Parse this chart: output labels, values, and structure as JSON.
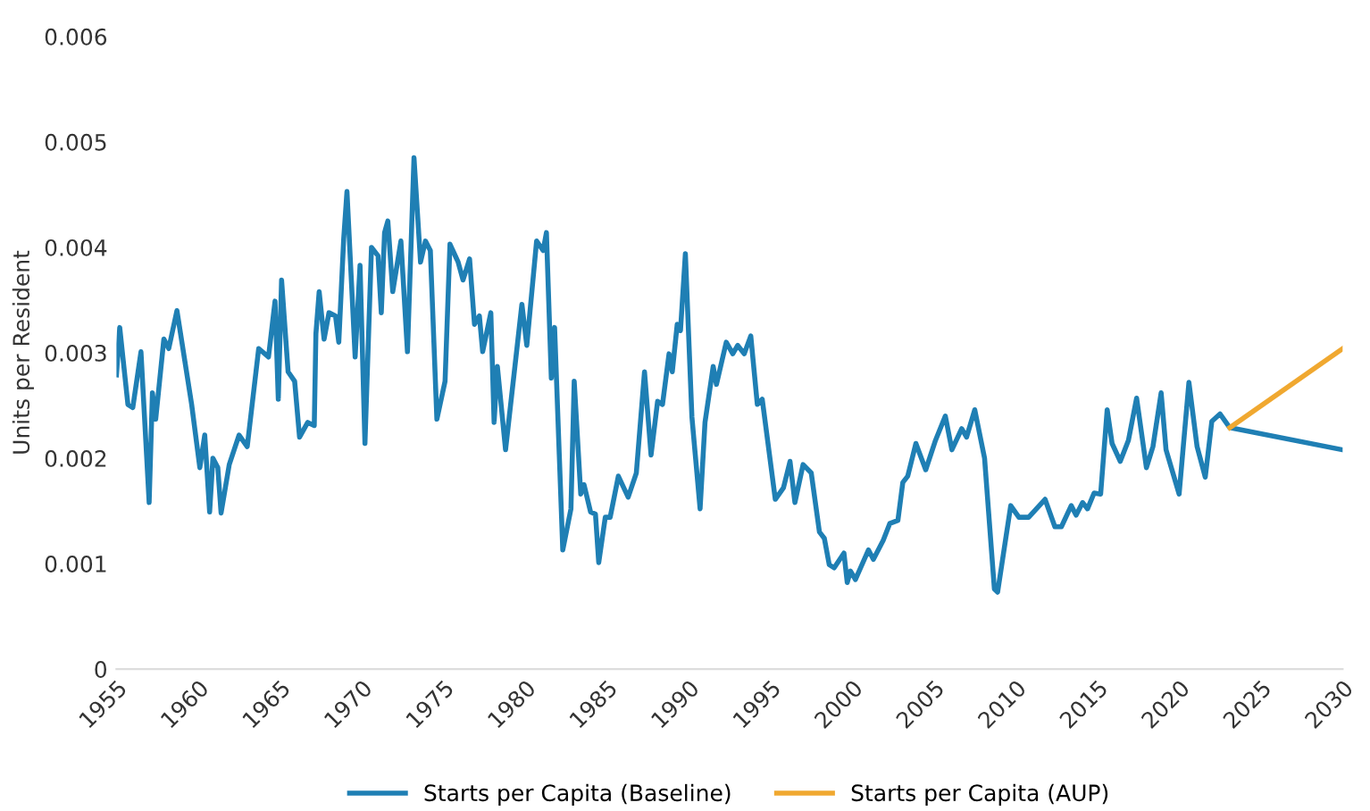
{
  "chart_data": {
    "type": "line",
    "ylabel": "Units per Resident",
    "xlim": [
      1955,
      2030
    ],
    "xticks": [
      1955,
      1960,
      1965,
      1970,
      1975,
      1980,
      1985,
      1990,
      1995,
      2000,
      2005,
      2010,
      2015,
      2020,
      2025,
      2030
    ],
    "ylim": [
      0,
      0.006
    ],
    "yticks": [
      0,
      0.001,
      0.002,
      0.003,
      0.004,
      0.005,
      0.006
    ],
    "grid": false,
    "legend": "bottom",
    "marker": "none",
    "line_style": "solid",
    "series": [
      {
        "name": "Starts per Capita (Baseline)",
        "color": "#1f7fb4",
        "x": [
          1955.0,
          1955.2,
          1955.7,
          1956.0,
          1956.5,
          1957.0,
          1957.2,
          1957.4,
          1957.9,
          1958.2,
          1958.7,
          1959.6,
          1960.1,
          1960.4,
          1960.7,
          1960.9,
          1961.2,
          1961.4,
          1961.9,
          1962.5,
          1963.0,
          1963.7,
          1964.3,
          1964.7,
          1964.9,
          1965.1,
          1965.5,
          1965.9,
          1966.2,
          1966.7,
          1967.1,
          1967.2,
          1967.4,
          1967.7,
          1968.0,
          1968.4,
          1968.6,
          1968.9,
          1969.1,
          1969.6,
          1969.9,
          1970.2,
          1970.6,
          1971.0,
          1971.2,
          1971.4,
          1971.6,
          1971.9,
          1972.4,
          1972.8,
          1973.2,
          1973.6,
          1973.9,
          1974.2,
          1974.6,
          1975.1,
          1975.4,
          1975.9,
          1976.2,
          1976.6,
          1976.9,
          1977.2,
          1977.4,
          1977.9,
          1978.1,
          1978.3,
          1978.8,
          1979.8,
          1980.1,
          1980.7,
          1981.1,
          1981.3,
          1981.6,
          1981.8,
          1982.3,
          1982.8,
          1983.0,
          1983.4,
          1983.6,
          1984.0,
          1984.3,
          1984.5,
          1984.9,
          1985.2,
          1985.7,
          1986.3,
          1986.8,
          1987.3,
          1987.7,
          1988.1,
          1988.4,
          1988.8,
          1989.0,
          1989.3,
          1989.5,
          1989.8,
          1990.2,
          1990.7,
          1991.0,
          1991.5,
          1991.7,
          1992.3,
          1992.7,
          1993.0,
          1993.4,
          1993.8,
          1994.2,
          1994.5,
          1995.3,
          1995.8,
          1996.2,
          1996.5,
          1997.0,
          1997.5,
          1998.0,
          1998.3,
          1998.6,
          1998.9,
          1999.5,
          1999.7,
          1999.9,
          2000.2,
          2001.0,
          2001.3,
          2001.9,
          2002.3,
          2002.8,
          2003.1,
          2003.4,
          2003.9,
          2004.5,
          2005.1,
          2005.7,
          2006.1,
          2006.7,
          2007.0,
          2007.5,
          2008.1,
          2008.7,
          2008.9,
          2009.7,
          2010.2,
          2010.8,
          2011.8,
          2012.4,
          2012.8,
          2013.4,
          2013.7,
          2014.1,
          2014.4,
          2014.8,
          2015.2,
          2015.6,
          2015.9,
          2016.4,
          2016.9,
          2017.4,
          2018.0,
          2018.4,
          2018.9,
          2019.2,
          2020.0,
          2020.6,
          2021.1,
          2021.6,
          2022.0,
          2022.5,
          2023.1,
          2030.0
        ],
        "values": [
          0.00279,
          0.00324,
          0.00251,
          0.00248,
          0.00301,
          0.00158,
          0.00262,
          0.00237,
          0.00313,
          0.00304,
          0.0034,
          0.00251,
          0.00191,
          0.00222,
          0.00149,
          0.002,
          0.00191,
          0.00148,
          0.00194,
          0.00222,
          0.00211,
          0.00304,
          0.00296,
          0.00349,
          0.00256,
          0.00369,
          0.00282,
          0.00273,
          0.0022,
          0.00234,
          0.00231,
          0.00318,
          0.00358,
          0.00313,
          0.00338,
          0.00335,
          0.0031,
          0.00408,
          0.00453,
          0.00296,
          0.00383,
          0.00214,
          0.004,
          0.00392,
          0.00338,
          0.00414,
          0.00425,
          0.00358,
          0.00406,
          0.00301,
          0.00485,
          0.00386,
          0.00406,
          0.00397,
          0.00237,
          0.00273,
          0.00403,
          0.00386,
          0.00369,
          0.00389,
          0.00327,
          0.00335,
          0.00301,
          0.00338,
          0.00234,
          0.00287,
          0.00208,
          0.00346,
          0.00307,
          0.00406,
          0.00397,
          0.00414,
          0.00276,
          0.00324,
          0.00113,
          0.00152,
          0.00273,
          0.00166,
          0.00175,
          0.00149,
          0.00147,
          0.00101,
          0.00144,
          0.00144,
          0.00183,
          0.00163,
          0.00186,
          0.00282,
          0.00203,
          0.00254,
          0.00251,
          0.00299,
          0.00282,
          0.00327,
          0.00321,
          0.00394,
          0.00239,
          0.00152,
          0.00234,
          0.00287,
          0.0027,
          0.0031,
          0.00299,
          0.00307,
          0.00299,
          0.00316,
          0.00251,
          0.00256,
          0.00161,
          0.00172,
          0.00197,
          0.00158,
          0.00194,
          0.00186,
          0.0013,
          0.00124,
          0.00099,
          0.00096,
          0.0011,
          0.00082,
          0.00093,
          0.00085,
          0.00113,
          0.00104,
          0.00122,
          0.00138,
          0.00141,
          0.00177,
          0.00183,
          0.00214,
          0.00189,
          0.00217,
          0.0024,
          0.00208,
          0.00228,
          0.0022,
          0.00246,
          0.002,
          0.00076,
          0.00073,
          0.00155,
          0.00144,
          0.00144,
          0.00161,
          0.00135,
          0.00135,
          0.00155,
          0.00146,
          0.00158,
          0.00152,
          0.00167,
          0.00166,
          0.00246,
          0.00214,
          0.00197,
          0.00217,
          0.00257,
          0.00191,
          0.00211,
          0.00262,
          0.00208,
          0.00166,
          0.00272,
          0.00211,
          0.00182,
          0.00235,
          0.00242,
          0.00229,
          0.00208
        ]
      },
      {
        "name": "Starts per Capita (AUP)",
        "color": "#f0a830",
        "x": [
          2023.1,
          2030.0
        ],
        "values": [
          0.00229,
          0.00304
        ]
      }
    ]
  }
}
